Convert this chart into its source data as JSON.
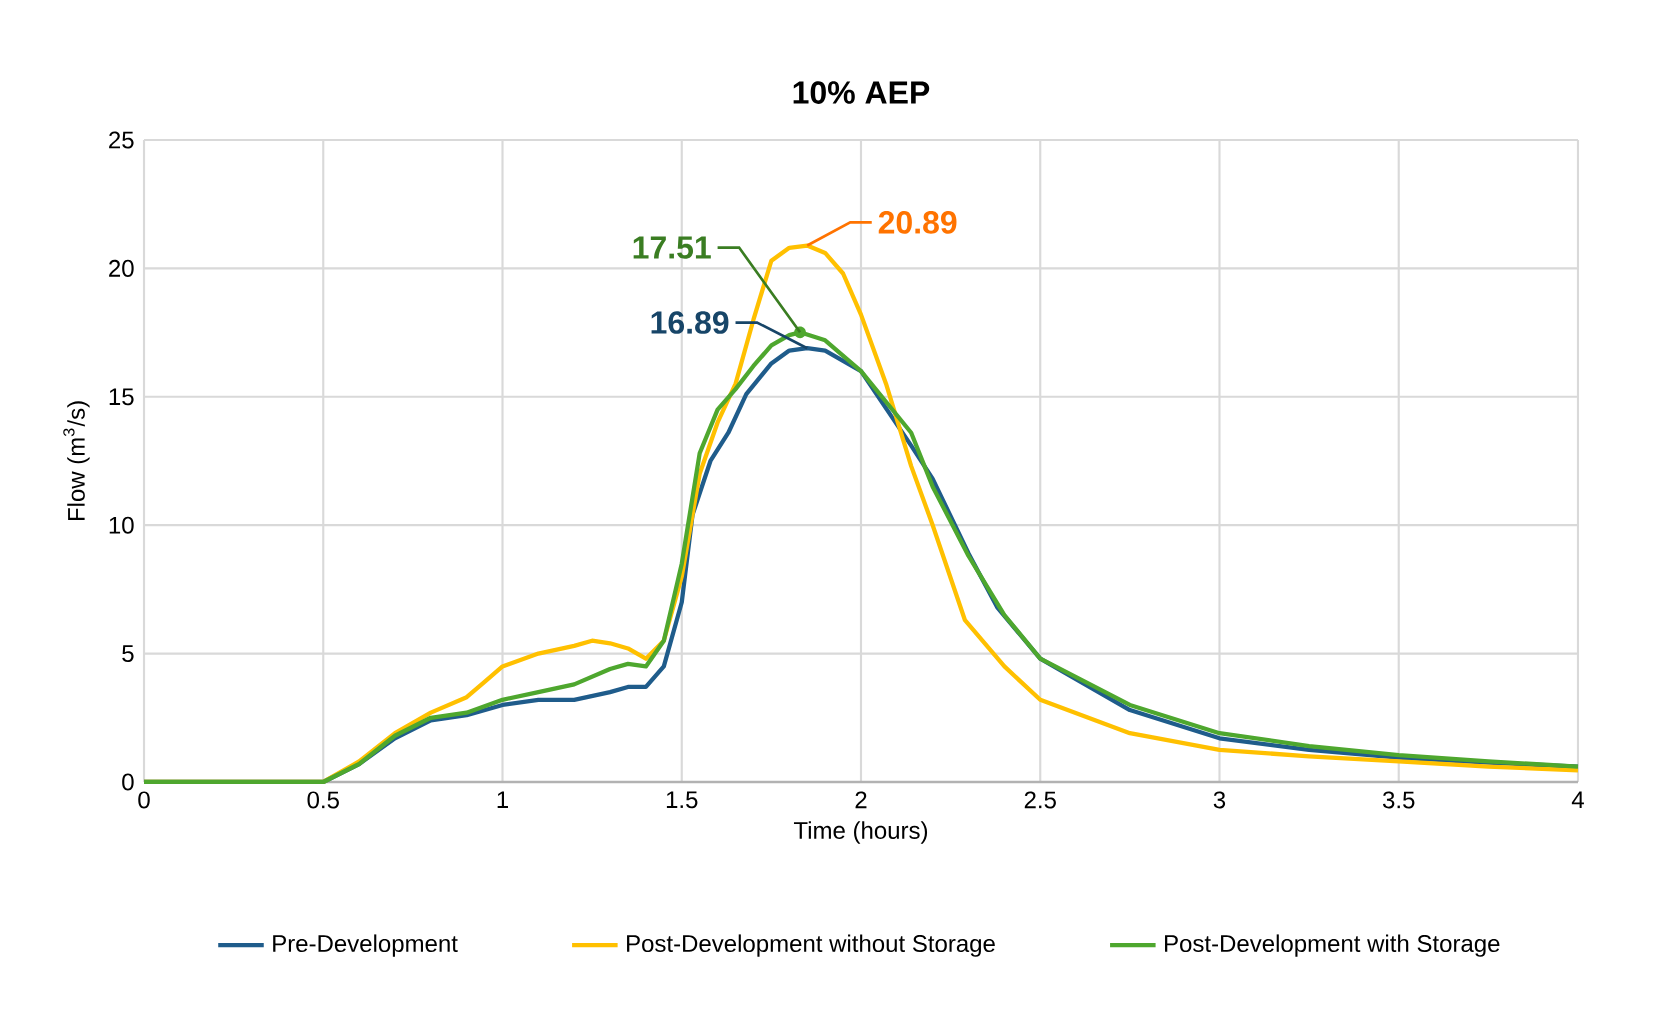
{
  "chart_data": {
    "type": "line",
    "title": "10% AEP",
    "xlabel": "Time (hours)",
    "ylabel": "Flow (m$^{3}$/s)",
    "xlim": [
      0,
      4
    ],
    "xticks": [
      0,
      0.5,
      1,
      1.5,
      2,
      2.5,
      3,
      3.5,
      4
    ],
    "ylim": [
      0,
      25
    ],
    "yticks": [
      0,
      5,
      10,
      15,
      20,
      25
    ],
    "grid": true,
    "legend": "bottom",
    "marker": "none",
    "line_style": "solid",
    "series": [
      {
        "name": "Pre-Development",
        "color": "#1f5c8b",
        "x": [
          0,
          0.5,
          0.6,
          0.7,
          0.8,
          0.9,
          1.0,
          1.1,
          1.2,
          1.3,
          1.35,
          1.4,
          1.45,
          1.5,
          1.53,
          1.58,
          1.63,
          1.68,
          1.75,
          1.8,
          1.85,
          1.9,
          2.0,
          2.14,
          2.2,
          2.3,
          2.38,
          2.5,
          2.75,
          3.0,
          3.25,
          3.5,
          3.75,
          4.0
        ],
        "values": [
          0,
          0,
          0.7,
          1.7,
          2.4,
          2.6,
          3.0,
          3.2,
          3.2,
          3.5,
          3.7,
          3.7,
          4.5,
          7,
          10.4,
          12.5,
          13.6,
          15.1,
          16.3,
          16.8,
          16.89,
          16.8,
          16.0,
          13.1,
          11.8,
          8.9,
          6.8,
          4.8,
          2.8,
          1.7,
          1.25,
          0.95,
          0.75,
          0.6
        ],
        "value_labels": [
          null,
          null,
          null,
          null,
          null,
          null,
          null,
          null,
          null,
          null,
          null,
          null,
          null,
          null,
          null,
          null,
          null,
          null,
          null,
          null,
          "16.89",
          null,
          null,
          null,
          null,
          null,
          null,
          null,
          null,
          null,
          null,
          null,
          null,
          null
        ]
      },
      {
        "name": "Post-Development without Storage",
        "color": "#ffc000",
        "x": [
          0,
          0.5,
          0.6,
          0.7,
          0.8,
          0.9,
          0.95,
          1.0,
          1.1,
          1.2,
          1.25,
          1.3,
          1.35,
          1.4,
          1.45,
          1.5,
          1.55,
          1.6,
          1.65,
          1.7,
          1.75,
          1.8,
          1.85,
          1.9,
          1.95,
          2.0,
          2.07,
          2.14,
          2.2,
          2.29,
          2.4,
          2.5,
          2.75,
          3.0,
          3.25,
          3.5,
          3.75,
          4.0
        ],
        "values": [
          0,
          0,
          0.8,
          1.9,
          2.7,
          3.3,
          3.9,
          4.5,
          5.0,
          5.3,
          5.5,
          5.4,
          5.2,
          4.8,
          5.5,
          8,
          12,
          14,
          15.5,
          18,
          20.3,
          20.8,
          20.89,
          20.6,
          19.8,
          18.2,
          15.5,
          12.3,
          10,
          6.3,
          4.5,
          3.2,
          1.9,
          1.25,
          1.0,
          0.8,
          0.6,
          0.45
        ],
        "value_labels": [
          null,
          null,
          null,
          null,
          null,
          null,
          null,
          null,
          null,
          null,
          null,
          null,
          null,
          null,
          null,
          null,
          null,
          null,
          null,
          null,
          null,
          null,
          "20.89",
          null,
          null,
          null,
          null,
          null,
          null,
          null,
          null,
          null,
          null,
          null,
          null,
          null,
          null,
          null
        ]
      },
      {
        "name": "Post-Development with Storage",
        "color": "#4ea72e",
        "x": [
          0,
          0.5,
          0.6,
          0.7,
          0.8,
          0.9,
          1.0,
          1.1,
          1.2,
          1.3,
          1.35,
          1.4,
          1.45,
          1.5,
          1.55,
          1.6,
          1.65,
          1.7,
          1.75,
          1.8,
          1.83,
          1.9,
          2.0,
          2.14,
          2.2,
          2.3,
          2.4,
          2.5,
          2.75,
          3.0,
          3.25,
          3.5,
          3.75,
          4.0
        ],
        "values": [
          0,
          0,
          0.7,
          1.8,
          2.5,
          2.7,
          3.2,
          3.5,
          3.8,
          4.4,
          4.6,
          4.5,
          5.5,
          8.5,
          12.8,
          14.5,
          15.3,
          16.2,
          17.0,
          17.4,
          17.51,
          17.2,
          16.0,
          13.6,
          11.5,
          8.8,
          6.5,
          4.8,
          3.0,
          1.9,
          1.4,
          1.05,
          0.8,
          0.6
        ],
        "value_labels": [
          null,
          null,
          null,
          null,
          null,
          null,
          null,
          null,
          null,
          null,
          null,
          null,
          null,
          null,
          null,
          null,
          null,
          null,
          null,
          null,
          "17.51",
          null,
          null,
          null,
          null,
          null,
          null,
          null,
          null,
          null,
          null,
          null,
          null,
          null
        ]
      }
    ]
  }
}
